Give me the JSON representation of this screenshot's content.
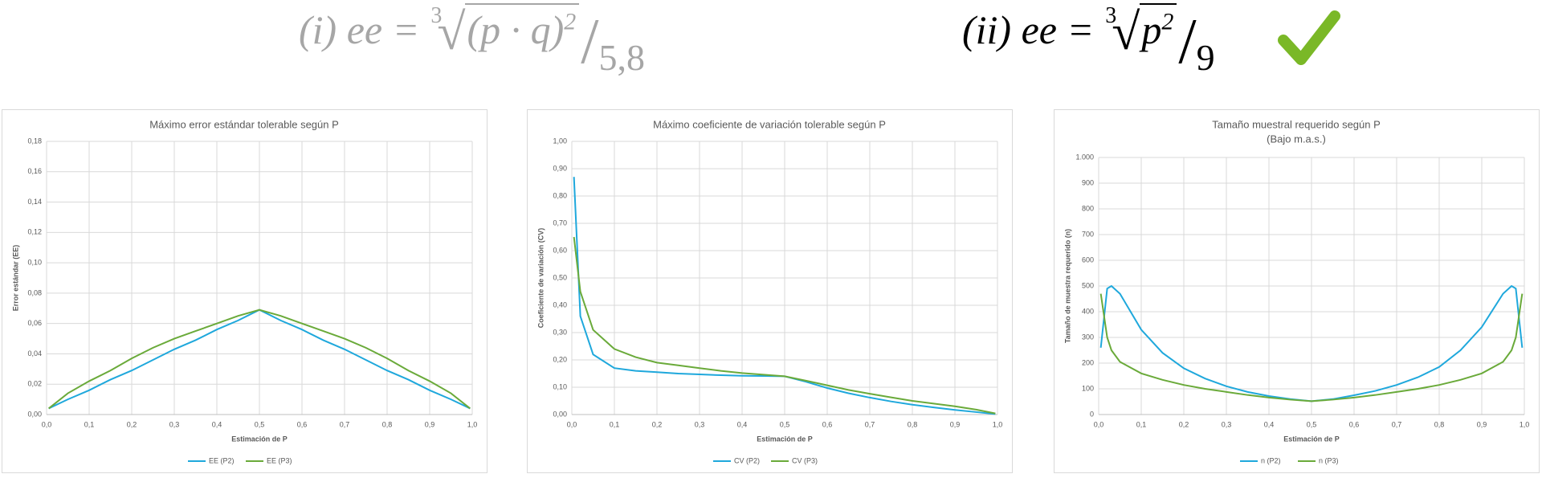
{
  "formulas": [
    {
      "prefix": "(i) ee =",
      "index": "3",
      "radicand": "(p · q)",
      "exponent": "2",
      "denominator": "5,8"
    },
    {
      "prefix": "(ii) ee =",
      "index": "3",
      "radicand": "p",
      "exponent": "2",
      "denominator": "9"
    }
  ],
  "chart_data": [
    {
      "type": "line",
      "title": "Máximo error estándar tolerable según P",
      "x_label": "Estimación de P",
      "y_label": "Error estándar (EE)",
      "x": [
        0.005,
        0.05,
        0.1,
        0.15,
        0.2,
        0.25,
        0.3,
        0.35,
        0.4,
        0.45,
        0.5,
        0.55,
        0.6,
        0.65,
        0.7,
        0.75,
        0.8,
        0.85,
        0.9,
        0.95,
        0.995
      ],
      "series": [
        {
          "name": "EE (P2)",
          "color": "#1fa8dc",
          "values": [
            0.004,
            0.01,
            0.016,
            0.023,
            0.029,
            0.036,
            0.043,
            0.049,
            0.056,
            0.062,
            0.069,
            0.062,
            0.056,
            0.049,
            0.043,
            0.036,
            0.029,
            0.023,
            0.016,
            0.01,
            0.004
          ]
        },
        {
          "name": "EE (P3)",
          "color": "#6aaa3a",
          "values": [
            0.004,
            0.014,
            0.022,
            0.029,
            0.037,
            0.044,
            0.05,
            0.055,
            0.06,
            0.065,
            0.069,
            0.065,
            0.06,
            0.055,
            0.05,
            0.044,
            0.037,
            0.029,
            0.022,
            0.014,
            0.004
          ]
        }
      ],
      "xlim": [
        0,
        1
      ],
      "xticks": [
        {
          "value": 0,
          "label": "0,0"
        },
        {
          "value": 0.1,
          "label": "0,1"
        },
        {
          "value": 0.2,
          "label": "0,2"
        },
        {
          "value": 0.3,
          "label": "0,3"
        },
        {
          "value": 0.4,
          "label": "0,4"
        },
        {
          "value": 0.5,
          "label": "0,5"
        },
        {
          "value": 0.6,
          "label": "0,6"
        },
        {
          "value": 0.7,
          "label": "0,7"
        },
        {
          "value": 0.8,
          "label": "0,8"
        },
        {
          "value": 0.9,
          "label": "0,9"
        },
        {
          "value": 1,
          "label": "1,0"
        }
      ],
      "ylim": [
        0,
        0.18
      ],
      "yticks": [
        {
          "value": 0,
          "label": "0,00"
        },
        {
          "value": 0.02,
          "label": "0,02"
        },
        {
          "value": 0.04,
          "label": "0,04"
        },
        {
          "value": 0.06,
          "label": "0,06"
        },
        {
          "value": 0.08,
          "label": "0,08"
        },
        {
          "value": 0.1,
          "label": "0,10"
        },
        {
          "value": 0.12,
          "label": "0,12"
        },
        {
          "value": 0.14,
          "label": "0,14"
        },
        {
          "value": 0.16,
          "label": "0,16"
        },
        {
          "value": 0.18,
          "label": "0,18"
        }
      ],
      "grid": true,
      "legend": "bottom"
    },
    {
      "type": "line",
      "title": "Máximo coeficiente de variación tolerable según P",
      "x_label": "Estimación de P",
      "y_label": "Coeficiente de variación (CV)",
      "x": [
        0.005,
        0.02,
        0.05,
        0.1,
        0.15,
        0.2,
        0.25,
        0.3,
        0.35,
        0.4,
        0.45,
        0.5,
        0.55,
        0.6,
        0.65,
        0.7,
        0.75,
        0.8,
        0.85,
        0.9,
        0.95,
        0.995
      ],
      "series": [
        {
          "name": "CV (P2)",
          "color": "#1fa8dc",
          "values": [
            0.87,
            0.36,
            0.22,
            0.17,
            0.16,
            0.155,
            0.15,
            0.147,
            0.144,
            0.142,
            0.141,
            0.14,
            0.12,
            0.097,
            0.078,
            0.062,
            0.048,
            0.036,
            0.026,
            0.017,
            0.009,
            0.002
          ]
        },
        {
          "name": "CV (P3)",
          "color": "#6aaa3a",
          "values": [
            0.65,
            0.45,
            0.31,
            0.24,
            0.21,
            0.19,
            0.18,
            0.17,
            0.16,
            0.152,
            0.146,
            0.14,
            0.124,
            0.107,
            0.09,
            0.076,
            0.063,
            0.05,
            0.04,
            0.03,
            0.018,
            0.004
          ]
        }
      ],
      "xlim": [
        0,
        1
      ],
      "xticks": [
        {
          "value": 0,
          "label": "0,0"
        },
        {
          "value": 0.1,
          "label": "0,1"
        },
        {
          "value": 0.2,
          "label": "0,2"
        },
        {
          "value": 0.3,
          "label": "0,3"
        },
        {
          "value": 0.4,
          "label": "0,4"
        },
        {
          "value": 0.5,
          "label": "0,5"
        },
        {
          "value": 0.6,
          "label": "0,6"
        },
        {
          "value": 0.7,
          "label": "0,7"
        },
        {
          "value": 0.8,
          "label": "0,8"
        },
        {
          "value": 0.9,
          "label": "0,9"
        },
        {
          "value": 1,
          "label": "1,0"
        }
      ],
      "ylim": [
        0,
        1
      ],
      "yticks": [
        {
          "value": 0,
          "label": "0,00"
        },
        {
          "value": 0.1,
          "label": "0,10"
        },
        {
          "value": 0.2,
          "label": "0,20"
        },
        {
          "value": 0.3,
          "label": "0,30"
        },
        {
          "value": 0.4,
          "label": "0,40"
        },
        {
          "value": 0.5,
          "label": "0,50"
        },
        {
          "value": 0.6,
          "label": "0,60"
        },
        {
          "value": 0.7,
          "label": "0,70"
        },
        {
          "value": 0.8,
          "label": "0,80"
        },
        {
          "value": 0.9,
          "label": "0,90"
        },
        {
          "value": 1,
          "label": "1,00"
        }
      ],
      "grid": true,
      "legend": "bottom"
    },
    {
      "type": "line",
      "title": "Tamaño muestral requerido según P",
      "subtitle": "(Bajo m.a.s.)",
      "x_label": "Estimación de P",
      "y_label": "Tamaño de muestra requerido (n)",
      "x": [
        0.005,
        0.02,
        0.03,
        0.05,
        0.1,
        0.15,
        0.2,
        0.25,
        0.3,
        0.35,
        0.4,
        0.45,
        0.5,
        0.55,
        0.6,
        0.65,
        0.7,
        0.75,
        0.8,
        0.85,
        0.9,
        0.95,
        0.97,
        0.98,
        0.995
      ],
      "series": [
        {
          "name": "n (P2)",
          "color": "#1fa8dc",
          "values": [
            260,
            490,
            500,
            470,
            330,
            240,
            180,
            140,
            110,
            88,
            72,
            60,
            52,
            60,
            75,
            92,
            115,
            145,
            185,
            250,
            340,
            470,
            500,
            490,
            260
          ]
        },
        {
          "name": "n (P3)",
          "color": "#6aaa3a",
          "values": [
            470,
            300,
            250,
            205,
            160,
            135,
            115,
            100,
            88,
            76,
            66,
            58,
            52,
            58,
            66,
            76,
            88,
            100,
            115,
            135,
            160,
            205,
            250,
            300,
            470
          ]
        }
      ],
      "xlim": [
        0,
        1
      ],
      "xticks": [
        {
          "value": 0,
          "label": "0,0"
        },
        {
          "value": 0.1,
          "label": "0,1"
        },
        {
          "value": 0.2,
          "label": "0,2"
        },
        {
          "value": 0.3,
          "label": "0,3"
        },
        {
          "value": 0.4,
          "label": "0,4"
        },
        {
          "value": 0.5,
          "label": "0,5"
        },
        {
          "value": 0.6,
          "label": "0,6"
        },
        {
          "value": 0.7,
          "label": "0,7"
        },
        {
          "value": 0.8,
          "label": "0,8"
        },
        {
          "value": 0.9,
          "label": "0,9"
        },
        {
          "value": 1,
          "label": "1,0"
        }
      ],
      "ylim": [
        0,
        1000
      ],
      "yticks": [
        0,
        100,
        200,
        300,
        400,
        500,
        600,
        700,
        800,
        900,
        {
          "value": 1000,
          "label": "1.000"
        }
      ],
      "grid": true,
      "legend": "bottom"
    }
  ]
}
